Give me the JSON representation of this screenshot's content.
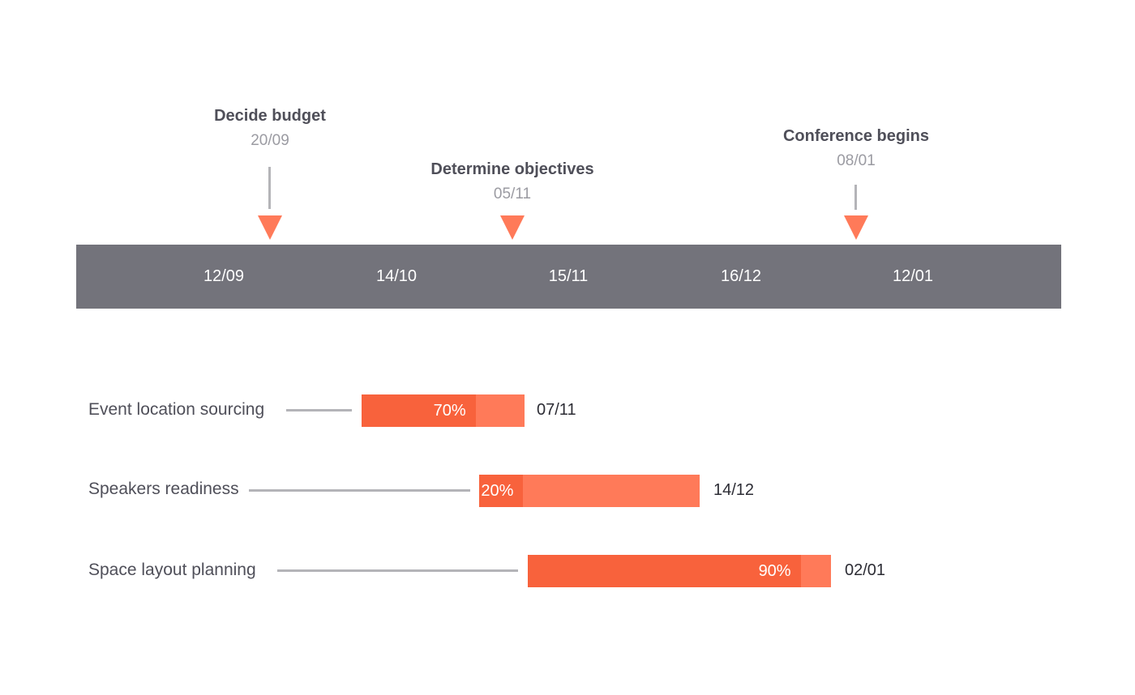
{
  "milestones": [
    {
      "title": "Decide budget",
      "date": "20/09"
    },
    {
      "title": "Determine objectives",
      "date": "05/11"
    },
    {
      "title": "Conference begins",
      "date": "08/01"
    }
  ],
  "axis": {
    "ticks": [
      "12/09",
      "14/10",
      "15/11",
      "16/12",
      "12/01"
    ]
  },
  "tasks": [
    {
      "label": "Event location sourcing",
      "progress": "70%",
      "progress_fraction": 0.7,
      "end_date": "07/11"
    },
    {
      "label": "Speakers readiness",
      "progress": "20%",
      "progress_fraction": 0.2,
      "end_date": "14/12"
    },
    {
      "label": "Space layout planning",
      "progress": "90%",
      "progress_fraction": 0.9,
      "end_date": "02/01"
    }
  ],
  "colors": {
    "axis_band": "#73737b",
    "marker": "#ff7a59",
    "bar": "#ff7a59",
    "bar_progress": "#f8623c",
    "connector": "#b4b4b8",
    "title_text": "#4f4f59",
    "date_text": "#9b9ba2"
  }
}
